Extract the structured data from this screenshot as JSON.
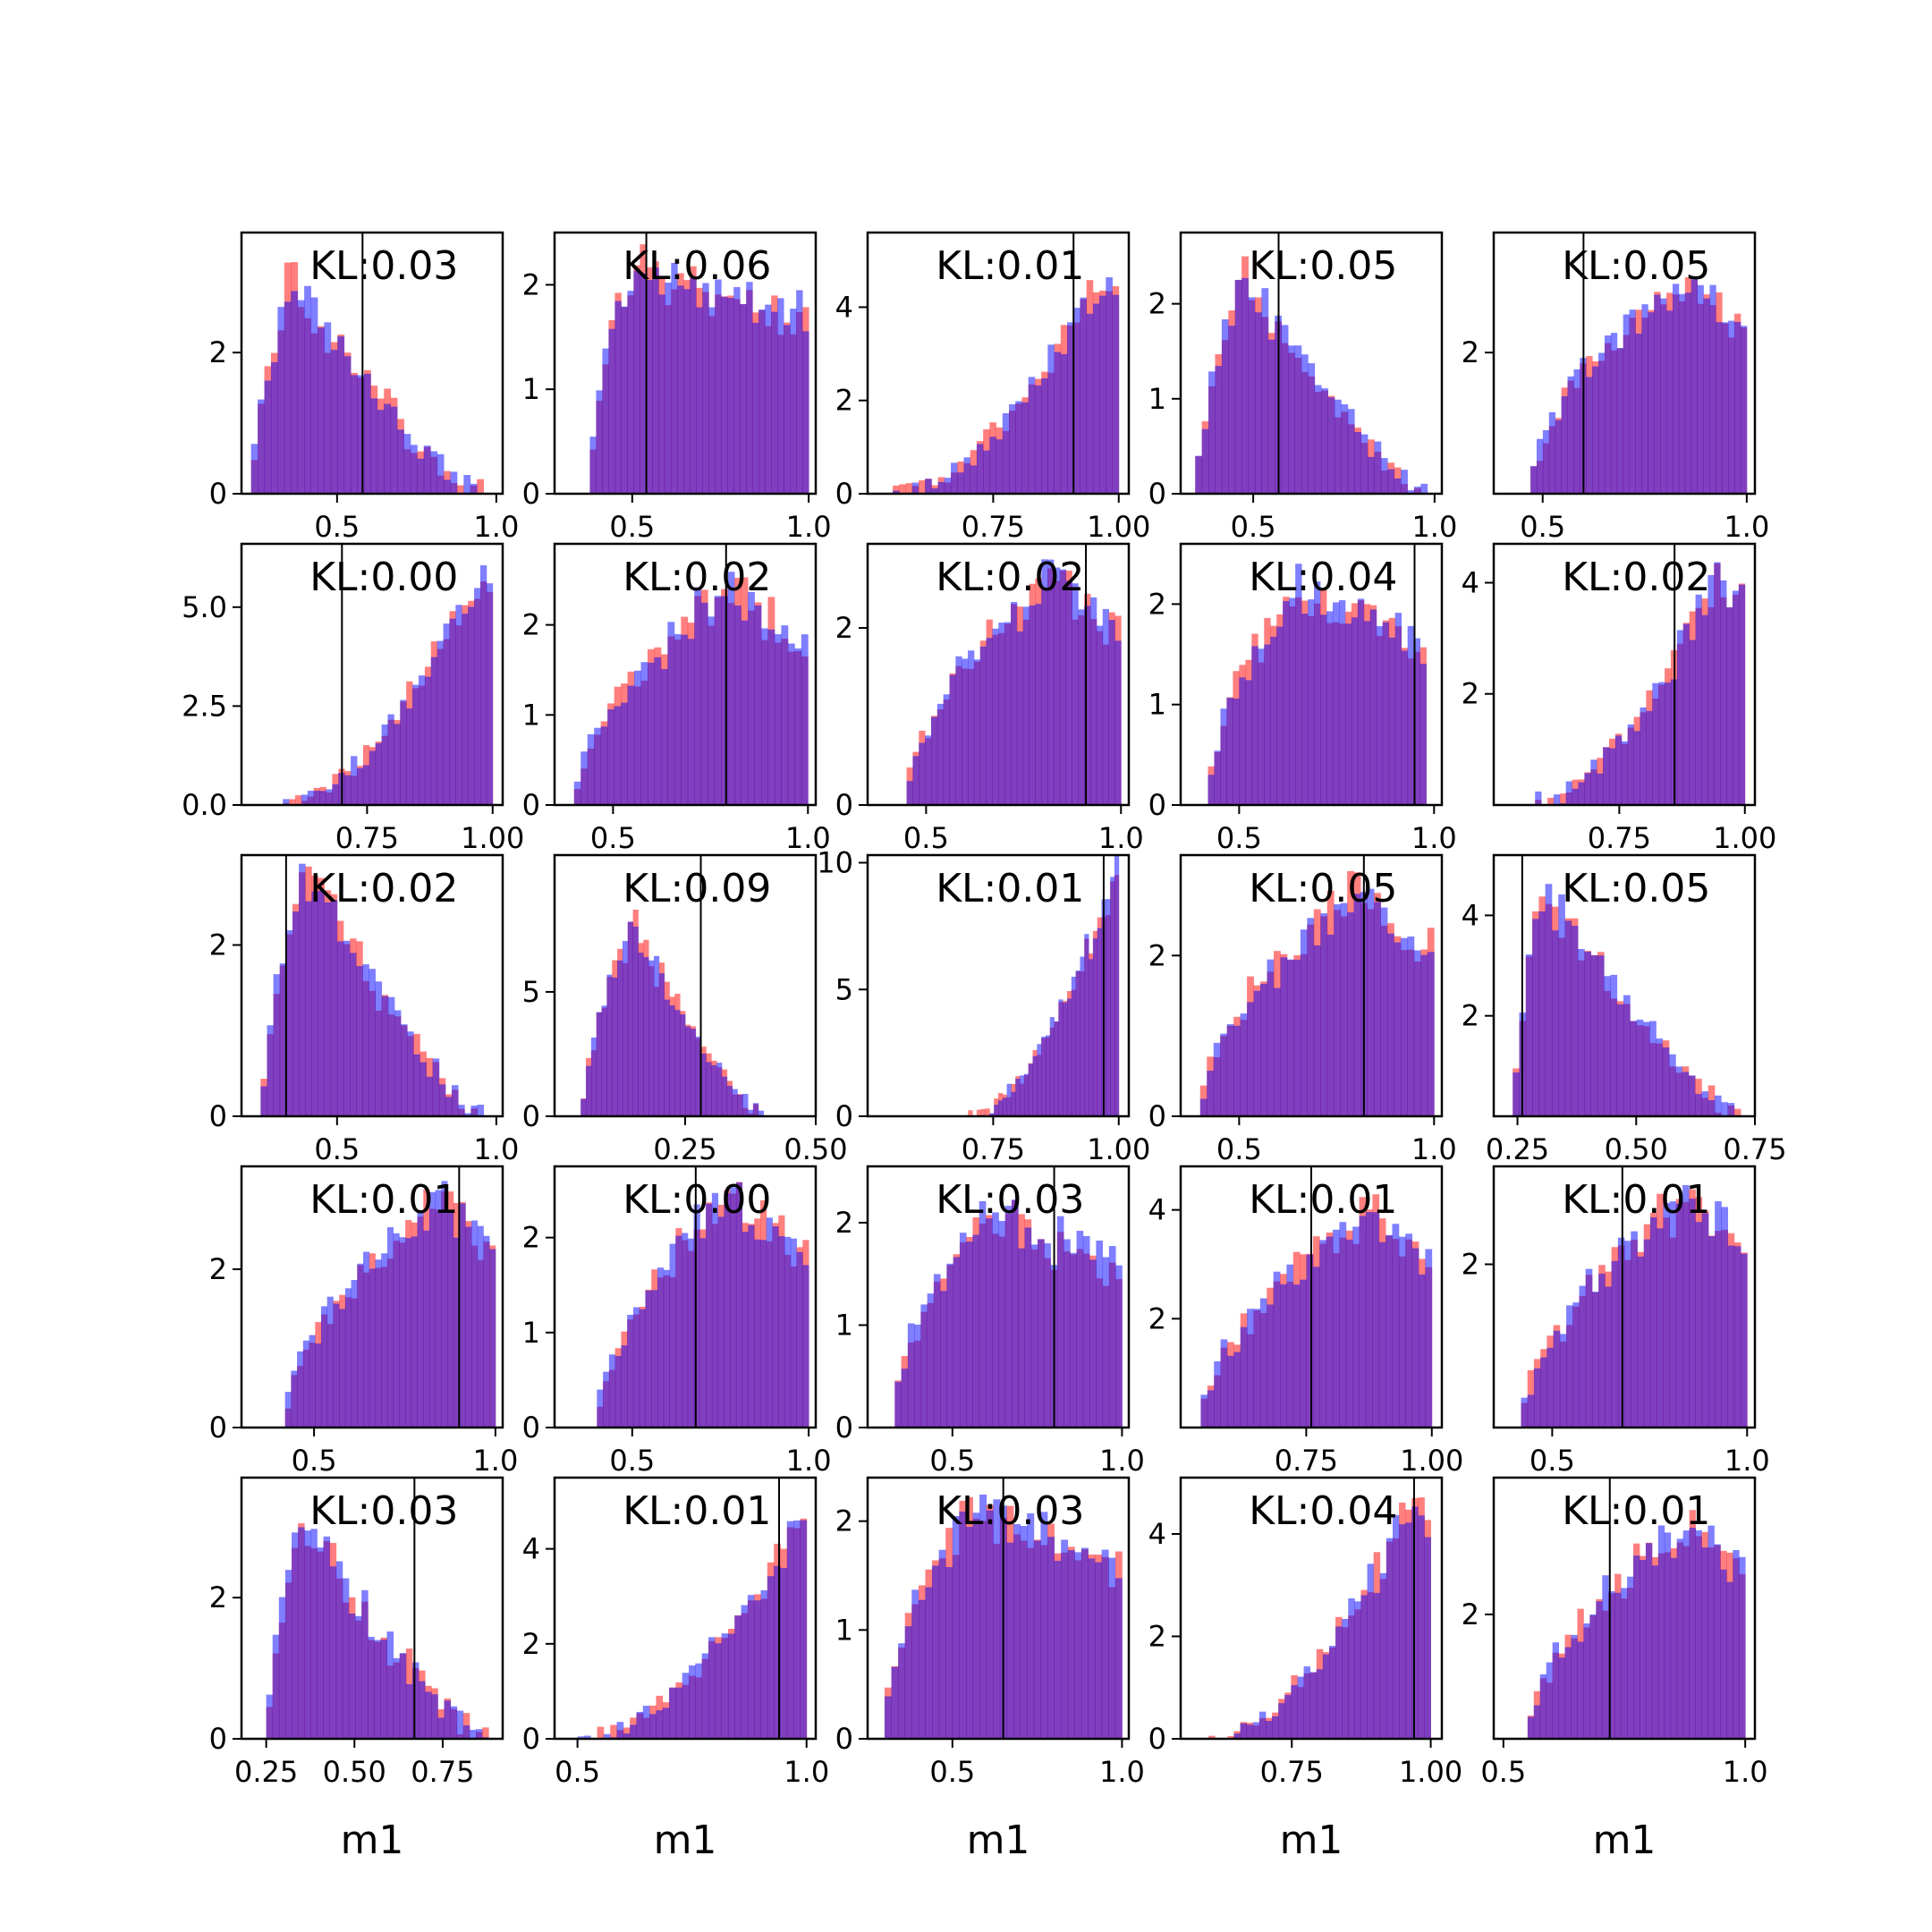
{
  "figure": {
    "colors": {
      "series_a": "#ff0000",
      "series_b": "#0000ff",
      "overlap": "#7e3bbd",
      "marker": "#000000"
    },
    "series_opacity": 0.5,
    "xlabel": "m1"
  },
  "chart_data": [
    {
      "type": "bar",
      "title": "KL:0.03",
      "xlim": [
        0.2,
        1.02
      ],
      "ylim": [
        0,
        3.7
      ],
      "xticks": [
        0.5,
        1.0
      ],
      "xtick_labels": [
        "0.5",
        "1.0"
      ],
      "yticks": [
        0,
        2
      ],
      "ytick_labels": [
        "0",
        "2"
      ],
      "marker": 0.58,
      "shape": {
        "kind": "skew",
        "peak": 0.35,
        "left": 0.23,
        "right": 0.96,
        "height": 3.0,
        "bump": 0.45,
        "seed": 1
      }
    },
    {
      "type": "bar",
      "title": "KL:0.06",
      "xlim": [
        0.28,
        1.02
      ],
      "ylim": [
        0,
        2.5
      ],
      "xticks": [
        0.5,
        1.0
      ],
      "xtick_labels": [
        "0.5",
        "1.0"
      ],
      "yticks": [
        0,
        1,
        2
      ],
      "ytick_labels": [
        "0",
        "1",
        "2"
      ],
      "marker": 0.54,
      "shape": {
        "kind": "plateau",
        "peak": 0.5,
        "left": 0.38,
        "right": 1.0,
        "height": 2.2,
        "bump": 0.25,
        "seed": 2
      }
    },
    {
      "type": "bar",
      "title": "KL:0.01",
      "xlim": [
        0.5,
        1.02
      ],
      "ylim": [
        0,
        5.6
      ],
      "xticks": [
        0.75,
        1.0
      ],
      "xtick_labels": [
        "0.75",
        "1.00"
      ],
      "yticks": [
        0,
        2,
        4
      ],
      "ytick_labels": [
        "0",
        "2",
        "4"
      ],
      "marker": 0.91,
      "shape": {
        "kind": "rise",
        "peak": 0.97,
        "left": 0.55,
        "right": 1.0,
        "height": 4.8,
        "bump": 0.4,
        "seed": 3
      }
    },
    {
      "type": "bar",
      "title": "KL:0.05",
      "xlim": [
        0.3,
        1.02
      ],
      "ylim": [
        0,
        2.75
      ],
      "xticks": [
        0.5,
        1.0
      ],
      "xtick_labels": [
        "0.5",
        "1.0"
      ],
      "yticks": [
        0,
        1,
        2
      ],
      "ytick_labels": [
        "0",
        "1",
        "2"
      ],
      "marker": 0.57,
      "shape": {
        "kind": "skew",
        "peak": 0.47,
        "left": 0.34,
        "right": 0.98,
        "height": 2.35,
        "bump": 0.25,
        "seed": 4
      }
    },
    {
      "type": "bar",
      "title": "KL:0.05",
      "xlim": [
        0.38,
        1.02
      ],
      "ylim": [
        0,
        3.7
      ],
      "xticks": [
        0.5,
        1.0
      ],
      "xtick_labels": [
        "0.5",
        "1.0"
      ],
      "yticks": [
        2
      ],
      "ytick_labels": [
        "2"
      ],
      "marker": 0.6,
      "shape": {
        "kind": "plateau",
        "peak": 0.85,
        "left": 0.47,
        "right": 1.0,
        "height": 3.05,
        "bump": 0.35,
        "seed": 5
      }
    },
    {
      "type": "bar",
      "title": "KL:0.00",
      "xlim": [
        0.5,
        1.02
      ],
      "ylim": [
        0,
        6.6
      ],
      "xticks": [
        0.75,
        1.0
      ],
      "xtick_labels": [
        "0.75",
        "1.00"
      ],
      "yticks": [
        0,
        2.5,
        5
      ],
      "ytick_labels": [
        "0.0",
        "2.5",
        "5.0"
      ],
      "marker": 0.7,
      "shape": {
        "kind": "rise",
        "peak": 0.98,
        "left": 0.57,
        "right": 1.0,
        "height": 6.0,
        "bump": 0.45,
        "seed": 6
      }
    },
    {
      "type": "bar",
      "title": "KL:0.02",
      "xlim": [
        0.35,
        1.02
      ],
      "ylim": [
        0,
        2.9
      ],
      "xticks": [
        0.5,
        1.0
      ],
      "xtick_labels": [
        "0.5",
        "1.0"
      ],
      "yticks": [
        0,
        1,
        2
      ],
      "ytick_labels": [
        "0",
        "1",
        "2"
      ],
      "marker": 0.79,
      "shape": {
        "kind": "plateau",
        "peak": 0.8,
        "left": 0.4,
        "right": 1.0,
        "height": 2.4,
        "bump": 0.3,
        "seed": 7
      }
    },
    {
      "type": "bar",
      "title": "KL:0.02",
      "xlim": [
        0.35,
        1.02
      ],
      "ylim": [
        0,
        2.95
      ],
      "xticks": [
        0.5,
        1.0
      ],
      "xtick_labels": [
        "0.5",
        "1.0"
      ],
      "yticks": [
        0,
        2
      ],
      "ytick_labels": [
        "0",
        "2"
      ],
      "marker": 0.91,
      "shape": {
        "kind": "plateau",
        "peak": 0.82,
        "left": 0.45,
        "right": 1.0,
        "height": 2.55,
        "bump": 0.3,
        "seed": 8
      }
    },
    {
      "type": "bar",
      "title": "KL:0.04",
      "xlim": [
        0.35,
        1.02
      ],
      "ylim": [
        0,
        2.6
      ],
      "xticks": [
        0.5,
        1.0
      ],
      "xtick_labels": [
        "0.5",
        "1.0"
      ],
      "yticks": [
        0,
        1,
        2
      ],
      "ytick_labels": [
        "0",
        "1",
        "2"
      ],
      "marker": 0.95,
      "shape": {
        "kind": "plateau",
        "peak": 0.65,
        "left": 0.42,
        "right": 0.98,
        "height": 2.15,
        "bump": 0.3,
        "seed": 9
      }
    },
    {
      "type": "bar",
      "title": "KL:0.02",
      "xlim": [
        0.5,
        1.02
      ],
      "ylim": [
        0,
        4.7
      ],
      "xticks": [
        0.75,
        1.0
      ],
      "xtick_labels": [
        "0.75",
        "1.00"
      ],
      "yticks": [
        2,
        4
      ],
      "ytick_labels": [
        "2",
        "4"
      ],
      "marker": 0.86,
      "shape": {
        "kind": "rise",
        "peak": 0.93,
        "left": 0.57,
        "right": 1.0,
        "height": 4.0,
        "bump": 0.45,
        "seed": 10
      }
    },
    {
      "type": "bar",
      "title": "KL:0.02",
      "xlim": [
        0.2,
        1.02
      ],
      "ylim": [
        0,
        3.05
      ],
      "xticks": [
        0.5,
        1.0
      ],
      "xtick_labels": [
        "0.5",
        "1.0"
      ],
      "yticks": [
        0,
        2
      ],
      "ytick_labels": [
        "0",
        "2"
      ],
      "marker": 0.34,
      "shape": {
        "kind": "skew",
        "peak": 0.4,
        "left": 0.26,
        "right": 0.96,
        "height": 2.95,
        "bump": 0.3,
        "seed": 11
      }
    },
    {
      "type": "bar",
      "title": "KL:0.09",
      "xlim": [
        0.0,
        0.5
      ],
      "ylim": [
        0,
        10.5
      ],
      "xticks": [
        0.25,
        0.5
      ],
      "xtick_labels": [
        "0.25",
        "0.50"
      ],
      "yticks": [
        0,
        5
      ],
      "ytick_labels": [
        "0",
        "5"
      ],
      "marker": 0.28,
      "shape": {
        "kind": "skew",
        "peak": 0.15,
        "left": 0.05,
        "right": 0.4,
        "height": 7.8,
        "bump": 0.7,
        "seed": 12
      }
    },
    {
      "type": "bar",
      "title": "KL:0.01",
      "xlim": [
        0.5,
        1.02
      ],
      "ylim": [
        0,
        10.3
      ],
      "xticks": [
        0.75,
        1.0
      ],
      "xtick_labels": [
        "0.75",
        "1.00"
      ],
      "yticks": [
        0,
        5,
        10
      ],
      "ytick_labels": [
        "0",
        "5",
        "10"
      ],
      "marker": 0.97,
      "shape": {
        "kind": "rise",
        "peak": 0.995,
        "left": 0.7,
        "right": 1.0,
        "height": 9.8,
        "bump": 0.6,
        "seed": 13
      }
    },
    {
      "type": "bar",
      "title": "KL:0.05",
      "xlim": [
        0.35,
        1.02
      ],
      "ylim": [
        0,
        3.25
      ],
      "xticks": [
        0.5,
        1.0
      ],
      "xtick_labels": [
        "0.5",
        "1.0"
      ],
      "yticks": [
        0,
        2
      ],
      "ytick_labels": [
        "0",
        "2"
      ],
      "marker": 0.82,
      "shape": {
        "kind": "plateau",
        "peak": 0.8,
        "left": 0.4,
        "right": 1.0,
        "height": 2.75,
        "bump": 0.3,
        "seed": 14
      }
    },
    {
      "type": "bar",
      "title": "KL:0.05",
      "xlim": [
        0.2,
        0.75
      ],
      "ylim": [
        0,
        5.2
      ],
      "xticks": [
        0.25,
        0.5,
        0.75
      ],
      "xtick_labels": [
        "0.25",
        "0.50",
        "0.75"
      ],
      "yticks": [
        2,
        4
      ],
      "ytick_labels": [
        "2",
        "4"
      ],
      "marker": 0.26,
      "shape": {
        "kind": "skew",
        "peak": 0.3,
        "left": 0.24,
        "right": 0.72,
        "height": 4.6,
        "bump": 0.45,
        "seed": 15
      }
    },
    {
      "type": "bar",
      "title": "KL:0.01",
      "xlim": [
        0.3,
        1.02
      ],
      "ylim": [
        0,
        3.3
      ],
      "xticks": [
        0.5,
        1.0
      ],
      "xtick_labels": [
        "0.5",
        "1.0"
      ],
      "yticks": [
        0,
        2
      ],
      "ytick_labels": [
        "0",
        "2"
      ],
      "marker": 0.9,
      "shape": {
        "kind": "plateau",
        "peak": 0.86,
        "left": 0.42,
        "right": 1.0,
        "height": 2.95,
        "bump": 0.3,
        "seed": 16
      }
    },
    {
      "type": "bar",
      "title": "KL:0.00",
      "xlim": [
        0.28,
        1.02
      ],
      "ylim": [
        0,
        2.75
      ],
      "xticks": [
        0.5,
        1.0
      ],
      "xtick_labels": [
        "0.5",
        "1.0"
      ],
      "yticks": [
        0,
        1,
        2
      ],
      "ytick_labels": [
        "0",
        "1",
        "2"
      ],
      "marker": 0.68,
      "shape": {
        "kind": "plateau",
        "peak": 0.78,
        "left": 0.4,
        "right": 1.0,
        "height": 2.45,
        "bump": 0.25,
        "seed": 17
      }
    },
    {
      "type": "bar",
      "title": "KL:0.03",
      "xlim": [
        0.25,
        1.02
      ],
      "ylim": [
        0,
        2.55
      ],
      "xticks": [
        0.5,
        1.0
      ],
      "xtick_labels": [
        "0.5",
        "1.0"
      ],
      "yticks": [
        0,
        1,
        2
      ],
      "ytick_labels": [
        "0",
        "1",
        "2"
      ],
      "marker": 0.8,
      "shape": {
        "kind": "plateau",
        "peak": 0.6,
        "left": 0.33,
        "right": 1.0,
        "height": 2.1,
        "bump": 0.3,
        "seed": 18
      }
    },
    {
      "type": "bar",
      "title": "KL:0.01",
      "xlim": [
        0.5,
        1.02
      ],
      "ylim": [
        0,
        4.8
      ],
      "xticks": [
        0.75,
        1.0
      ],
      "xtick_labels": [
        "0.75",
        "1.00"
      ],
      "yticks": [
        2,
        4
      ],
      "ytick_labels": [
        "2",
        "4"
      ],
      "marker": 0.76,
      "shape": {
        "kind": "plateau",
        "peak": 0.88,
        "left": 0.54,
        "right": 1.0,
        "height": 4.0,
        "bump": 0.4,
        "seed": 19
      }
    },
    {
      "type": "bar",
      "title": "KL:0.01",
      "xlim": [
        0.35,
        1.02
      ],
      "ylim": [
        0,
        3.2
      ],
      "xticks": [
        0.5,
        1.0
      ],
      "xtick_labels": [
        "0.5",
        "1.0"
      ],
      "yticks": [
        2
      ],
      "ytick_labels": [
        "2"
      ],
      "marker": 0.68,
      "shape": {
        "kind": "plateau",
        "peak": 0.85,
        "left": 0.42,
        "right": 1.0,
        "height": 2.8,
        "bump": 0.3,
        "seed": 20
      }
    },
    {
      "type": "bar",
      "title": "KL:0.03",
      "xlim": [
        0.18,
        0.92
      ],
      "ylim": [
        0,
        3.7
      ],
      "xticks": [
        0.25,
        0.5,
        0.75
      ],
      "xtick_labels": [
        "0.25",
        "0.50",
        "0.75"
      ],
      "yticks": [
        0,
        2
      ],
      "ytick_labels": [
        "0",
        "2"
      ],
      "marker": 0.67,
      "shape": {
        "kind": "skew",
        "peak": 0.35,
        "left": 0.25,
        "right": 0.88,
        "height": 3.1,
        "bump": 0.4,
        "seed": 21
      }
    },
    {
      "type": "bar",
      "title": "KL:0.01",
      "xlim": [
        0.45,
        1.02
      ],
      "ylim": [
        0,
        5.5
      ],
      "xticks": [
        0.5,
        1.0
      ],
      "xtick_labels": [
        "0.5",
        "1.0"
      ],
      "yticks": [
        0,
        2,
        4
      ],
      "ytick_labels": [
        "0",
        "2",
        "4"
      ],
      "marker": 0.94,
      "shape": {
        "kind": "rise",
        "peak": 0.98,
        "left": 0.5,
        "right": 1.0,
        "height": 4.5,
        "bump": 0.35,
        "seed": 22
      }
    },
    {
      "type": "bar",
      "title": "KL:0.03",
      "xlim": [
        0.25,
        1.02
      ],
      "ylim": [
        0,
        2.4
      ],
      "xticks": [
        0.5,
        1.0
      ],
      "xtick_labels": [
        "0.5",
        "1.0"
      ],
      "yticks": [
        0,
        1,
        2
      ],
      "ytick_labels": [
        "0",
        "1",
        "2"
      ],
      "marker": 0.65,
      "shape": {
        "kind": "plateau",
        "peak": 0.55,
        "left": 0.3,
        "right": 1.0,
        "height": 2.1,
        "bump": 0.25,
        "seed": 23
      }
    },
    {
      "type": "bar",
      "title": "KL:0.04",
      "xlim": [
        0.55,
        1.02
      ],
      "ylim": [
        0,
        5.1
      ],
      "xticks": [
        0.75,
        1.0
      ],
      "xtick_labels": [
        "0.75",
        "1.00"
      ],
      "yticks": [
        0,
        2,
        4
      ],
      "ytick_labels": [
        "0",
        "2",
        "4"
      ],
      "marker": 0.97,
      "shape": {
        "kind": "rise",
        "peak": 0.96,
        "left": 0.6,
        "right": 1.0,
        "height": 4.5,
        "bump": 0.4,
        "seed": 24
      }
    },
    {
      "type": "bar",
      "title": "KL:0.01",
      "xlim": [
        0.48,
        1.02
      ],
      "ylim": [
        0,
        4.2
      ],
      "xticks": [
        0.5,
        1.0
      ],
      "xtick_labels": [
        "0.5",
        "1.0"
      ],
      "yticks": [
        2
      ],
      "ytick_labels": [
        "2"
      ],
      "marker": 0.72,
      "shape": {
        "kind": "plateau",
        "peak": 0.9,
        "left": 0.55,
        "right": 1.0,
        "height": 3.5,
        "bump": 0.35,
        "seed": 25
      }
    }
  ]
}
